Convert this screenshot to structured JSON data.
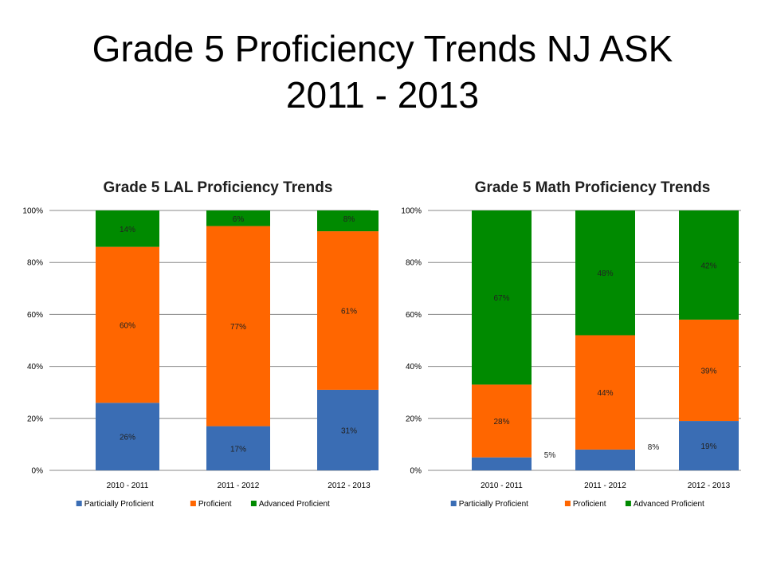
{
  "slide": {
    "title_line1": "Grade 5 Proficiency Trends NJ ASK",
    "title_line2": "2011 - 2013"
  },
  "colors": {
    "Particially Proficient": "#3a6db4",
    "Proficient": "#ff6600",
    "Advanced Proficient": "#008a00",
    "gridline": "#888888"
  },
  "chart_data": [
    {
      "type": "bar",
      "stacked": true,
      "title": "Grade 5 LAL Proficiency Trends",
      "categories": [
        "2010 - 2011",
        "2011 - 2012",
        "2012 - 2013"
      ],
      "ylim": [
        0,
        100
      ],
      "yticks": [
        "0%",
        "20%",
        "40%",
        "60%",
        "80%",
        "100%"
      ],
      "grid": true,
      "legend": "bottom",
      "series": [
        {
          "name": "Particially Proficient",
          "values": [
            26,
            17,
            31
          ],
          "labels": [
            "26%",
            "17%",
            "31%"
          ]
        },
        {
          "name": "Proficient",
          "values": [
            60,
            77,
            61
          ],
          "labels": [
            "60%",
            "77%",
            "61%"
          ]
        },
        {
          "name": "Advanced Proficient",
          "values": [
            14,
            6,
            8
          ],
          "labels": [
            "14%",
            "6%",
            "8%"
          ]
        }
      ]
    },
    {
      "type": "bar",
      "stacked": true,
      "title": "Grade 5 Math Proficiency Trends",
      "categories": [
        "2010 - 2011",
        "2011 - 2012",
        "2012 - 2013"
      ],
      "ylim": [
        0,
        100
      ],
      "yticks": [
        "0%",
        "20%",
        "40%",
        "60%",
        "80%",
        "100%"
      ],
      "grid": true,
      "legend": "bottom",
      "series": [
        {
          "name": "Particially Proficient",
          "values": [
            5,
            8,
            19
          ],
          "labels": [
            "5%",
            "8%",
            "19%"
          ]
        },
        {
          "name": "Proficient",
          "values": [
            28,
            44,
            39
          ],
          "labels": [
            "28%",
            "44%",
            "39%"
          ]
        },
        {
          "name": "Advanced Proficient",
          "values": [
            67,
            48,
            42
          ],
          "labels": [
            "67%",
            "48%",
            "42%"
          ]
        }
      ]
    }
  ]
}
